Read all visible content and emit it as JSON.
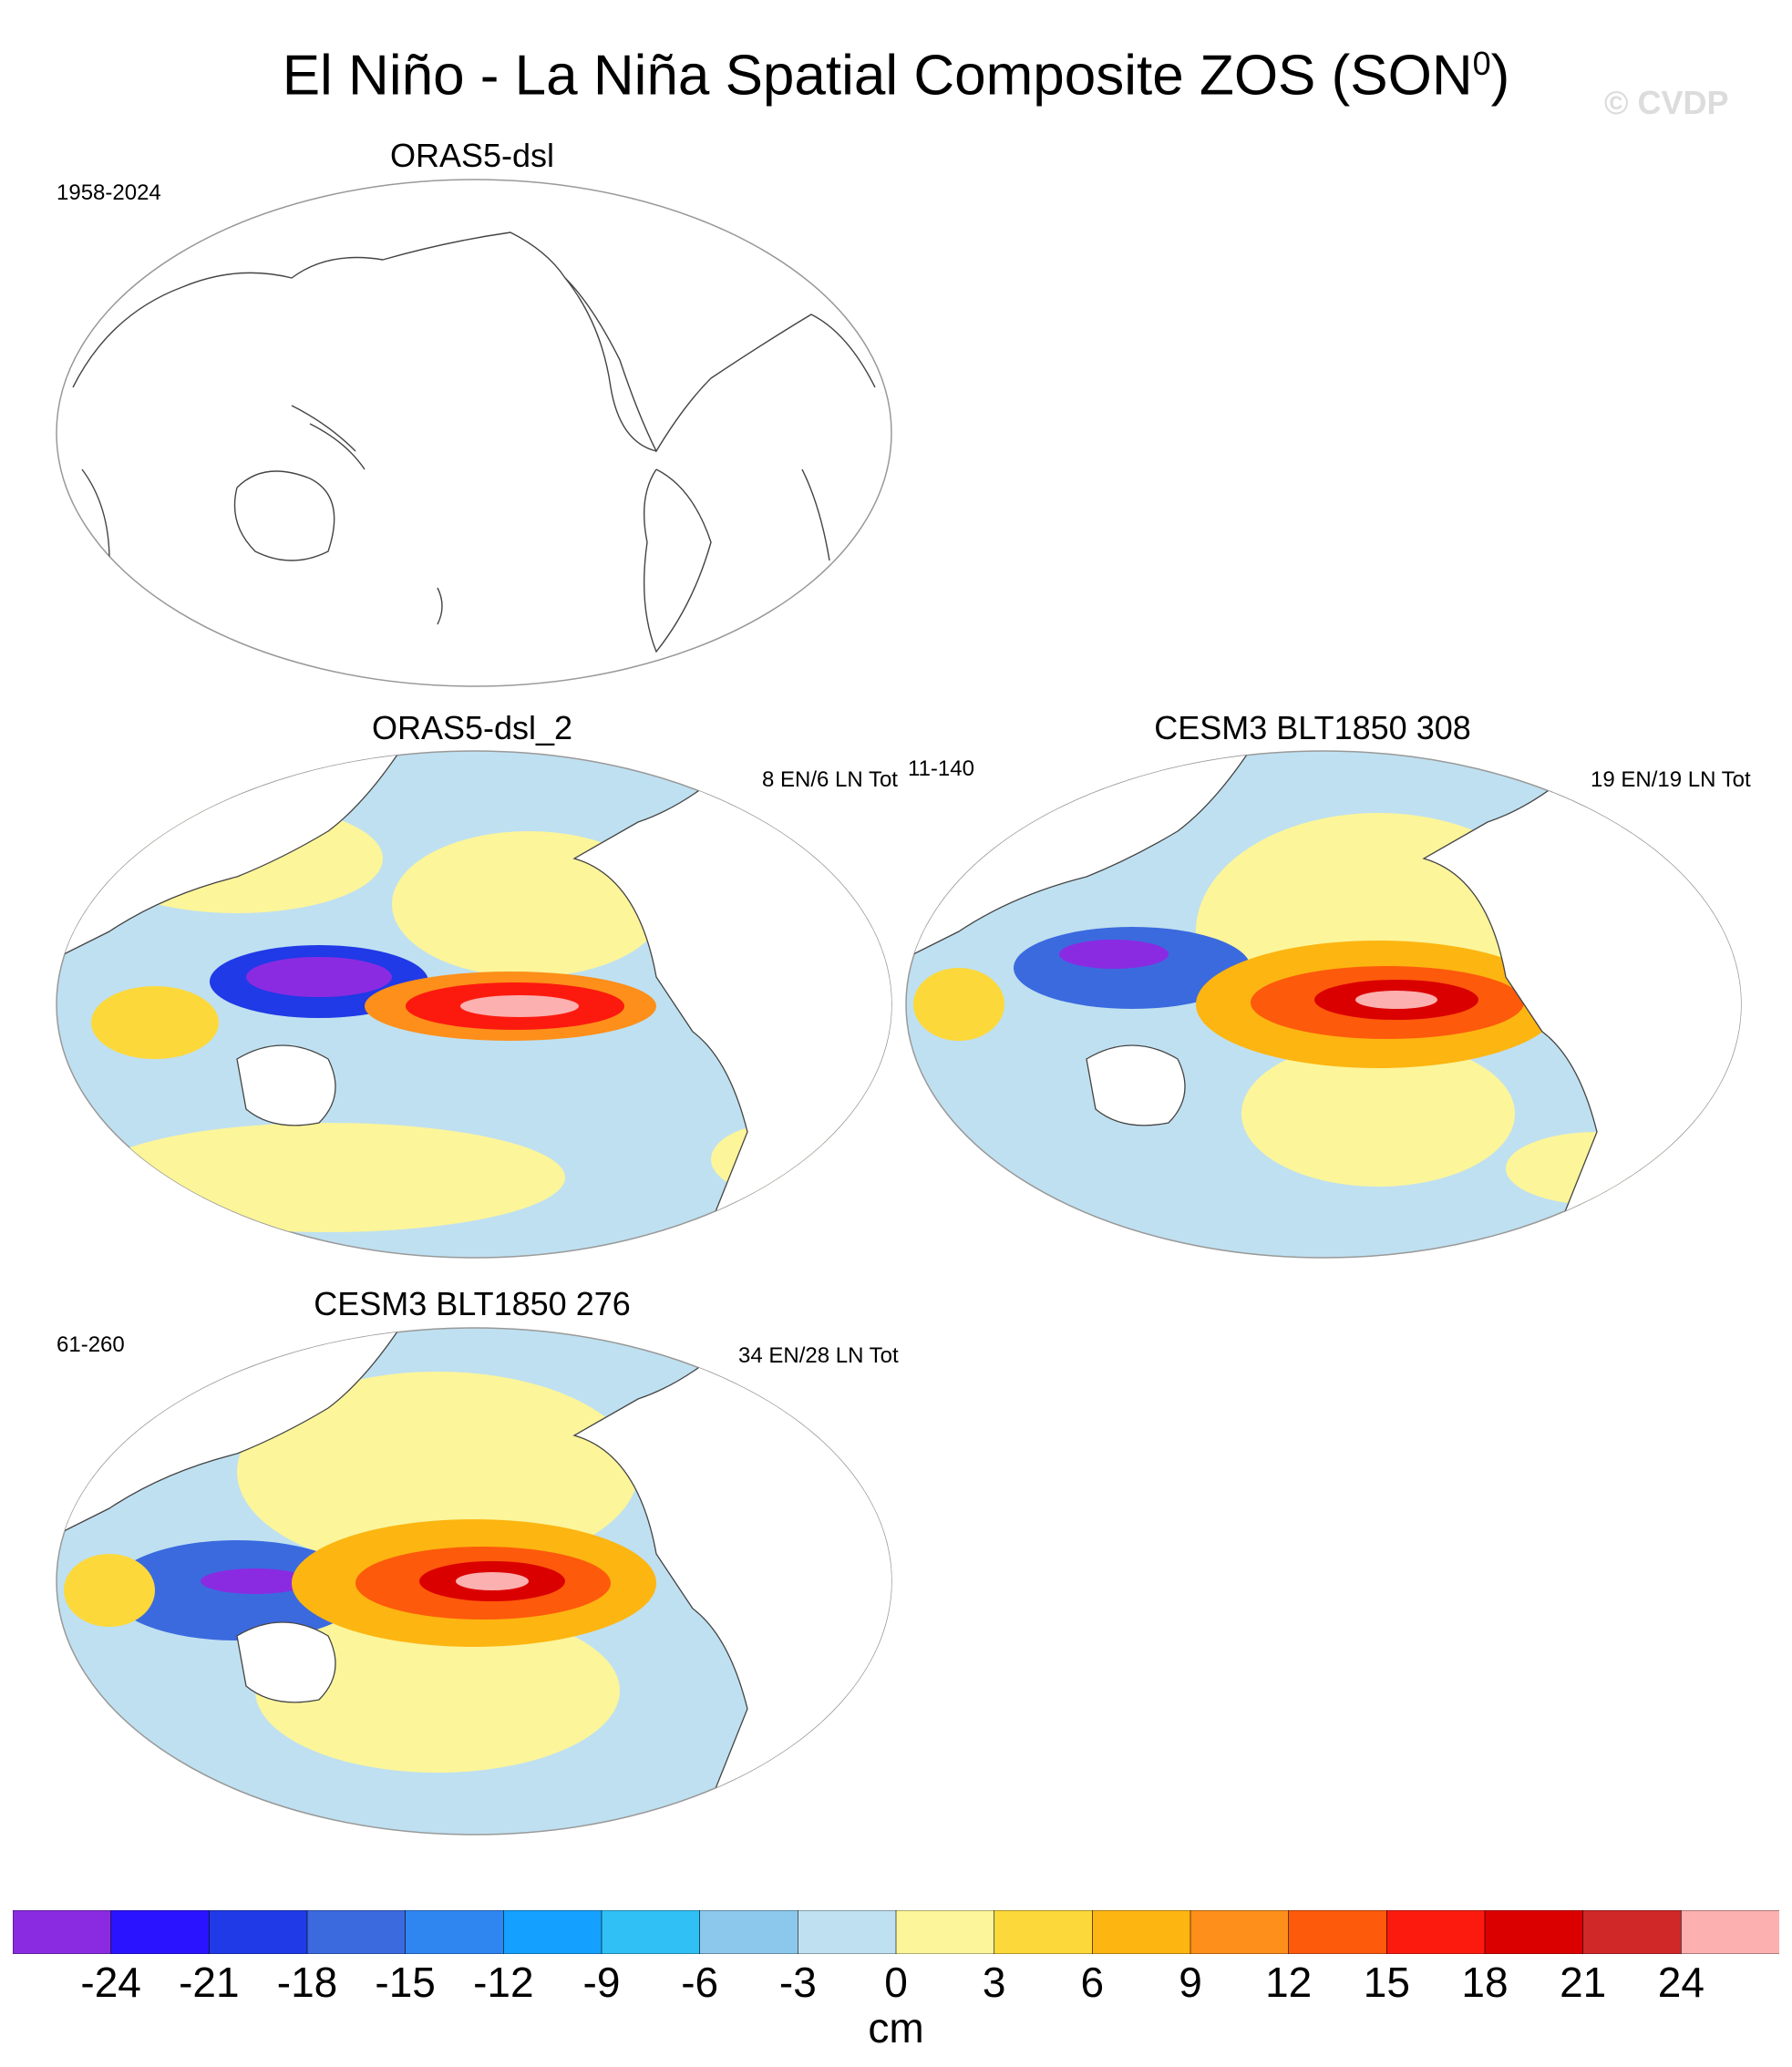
{
  "title": {
    "main": "El Niño - La Niña Spatial Composite ZOS (SON",
    "sup": "0",
    "close": ")"
  },
  "watermark": "© CVDP",
  "panels": [
    {
      "title": "ORAS5-dsl",
      "left_label": "1958-2024",
      "right_label": "",
      "has_data": false
    },
    {
      "title": "ORAS5-dsl_2",
      "left_label": "",
      "right_label": "8 EN/6 LN Tot",
      "has_data": true
    },
    {
      "title": "CESM3 BLT1850 308",
      "left_label": "11-140",
      "right_label": "19 EN/19 LN Tot",
      "has_data": true
    },
    {
      "title": "CESM3 BLT1850 276",
      "left_label": "61-260",
      "right_label": "34 EN/28 LN Tot",
      "has_data": true
    }
  ],
  "colorbar": {
    "colors": [
      "#8a2be2",
      "#2a14ff",
      "#1f3ae6",
      "#3b6adf",
      "#2f86f0",
      "#14a0ff",
      "#30c0f5",
      "#8cc8ec",
      "#bfe0f0",
      "#fcf59a",
      "#fcd83a",
      "#fdb511",
      "#fd8f1a",
      "#fd5a0c",
      "#fc1a0f",
      "#db0000",
      "#d02828",
      "#fcb0b0"
    ],
    "ticks": [
      "-24",
      "-21",
      "-18",
      "-15",
      "-12",
      "-9",
      "-6",
      "-3",
      "0",
      "3",
      "6",
      "9",
      "12",
      "15",
      "18",
      "21",
      "24"
    ],
    "units": "cm"
  }
}
